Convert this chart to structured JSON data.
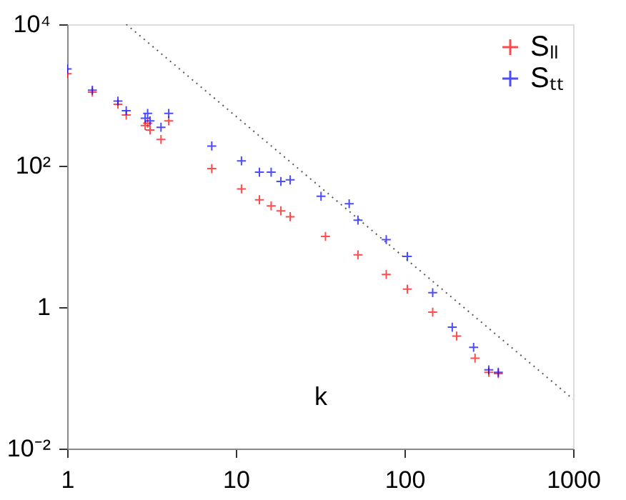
{
  "chart_data": {
    "type": "scatter",
    "xlabel": "k",
    "log": "xy",
    "grid": false,
    "legend": "top right",
    "xlim": [
      1,
      1000
    ],
    "xticks": [
      1,
      10,
      100,
      {
        "value": 1000,
        "label": "1000"
      }
    ],
    "ylim": [
      0.01,
      10000
    ],
    "yticks": [
      {
        "value": 0.01,
        "label": "10⁻²"
      },
      1,
      {
        "value": 100,
        "label": "10²"
      },
      {
        "value": 10000,
        "label": "10⁴"
      }
    ],
    "series": [
      {
        "name": "Sₗₗ",
        "color": "#ff0000",
        "marker": "cross",
        "x": [
          1,
          1.41,
          2,
          2.24,
          2.9,
          3.0,
          3.1,
          3.6,
          4,
          7.2,
          10.8,
          13.8,
          16.2,
          18.5,
          21,
          34,
          53,
          78,
          104,
          147,
          204,
          262,
          316,
          360
        ],
        "values": [
          2000,
          1100,
          740,
          520,
          370,
          400,
          320,
          235,
          430,
          91,
          47,
          33,
          27,
          23,
          19,
          10,
          5.5,
          2.9,
          1.8,
          0.85,
          0.39,
          0.19,
          0.12,
          0.115
        ]
      },
      {
        "name": "Sₜₜ",
        "color": "#0000ff",
        "marker": "cross",
        "x": [
          1,
          1.41,
          2,
          2.24,
          2.9,
          3.0,
          3.1,
          3.6,
          4,
          7.2,
          10.8,
          13.8,
          16.2,
          18.5,
          21,
          32,
          47,
          53,
          78,
          104,
          147,
          192,
          257,
          316,
          360
        ],
        "values": [
          2340,
          1170,
          820,
          600,
          470,
          550,
          430,
          350,
          550,
          190,
          117,
          81,
          81,
          60,
          63,
          37,
          29,
          17,
          9,
          5.2,
          1.6,
          0.52,
          0.27,
          0.13,
          0.12
        ]
      },
      {
        "type": "line",
        "color": "#555555",
        "line_style": "dotted",
        "marker": "none",
        "x": [
          2.24,
          1000
        ],
        "values": [
          10000,
          0.05
        ]
      }
    ]
  }
}
